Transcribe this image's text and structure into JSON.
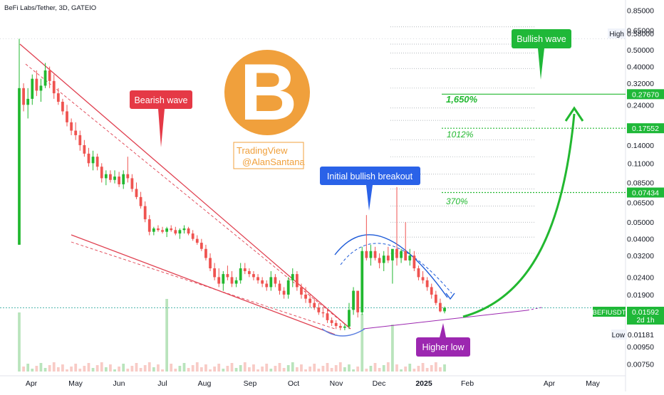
{
  "header": {
    "title": "BeFi Labs/Tether, 3D, GATEIO"
  },
  "watermark": {
    "line1": "TradingView",
    "line2": "@AlanSantana"
  },
  "logo": {
    "letter": "B",
    "color": "#F0A03C"
  },
  "annotations": {
    "bearish": "Bearish wave",
    "breakout": "Initial bullish breakout",
    "bullish": "Bullish wave",
    "higher_low": "Higher low",
    "pct_370": "370%",
    "pct_1012": "1012%",
    "pct_1650": "1,650%"
  },
  "price_axis": {
    "ticks": [
      "0.85000",
      "0.65000",
      "0.50000",
      "0.40000",
      "0.32000",
      "0.24000",
      "0.18000",
      "0.14000",
      "0.11000",
      "0.08500",
      "0.06500",
      "0.05000",
      "0.04000",
      "0.03200",
      "0.02400",
      "0.01900",
      "0.01450",
      "0.00950",
      "0.00750"
    ],
    "high_label": "High",
    "high_value": "0.58000",
    "low_label": "Low",
    "low_value": "0.01181",
    "current_symbol": "BEFIUSDT",
    "current_price": "0.01592",
    "countdown": "2d 1h",
    "target_1": "0.27670",
    "target_2": "0.17552",
    "target_3": "0.07434"
  },
  "time_axis": {
    "labels": [
      "Apr",
      "May",
      "Jun",
      "Jul",
      "Aug",
      "Sep",
      "Oct",
      "Nov",
      "Dec",
      "2025",
      "Feb",
      "Apr",
      "May"
    ]
  },
  "colors": {
    "up": "#26A69A",
    "down": "#EF5350",
    "green": "#22B830",
    "red": "#E04050",
    "blue": "#2962FF",
    "purple": "#9C27B0"
  },
  "chart_data": {
    "type": "candlestick",
    "title": "BeFi Labs/Tether, 3D, GATEIO",
    "scale": "log",
    "ylim": [
      0.0068,
      0.92
    ],
    "price_ticks": [
      0.85,
      0.65,
      0.5,
      0.4,
      0.32,
      0.24,
      0.18,
      0.14,
      0.11,
      0.085,
      0.065,
      0.05,
      0.04,
      0.032,
      0.024,
      0.019,
      0.0145,
      0.0095,
      0.0075
    ],
    "high": 0.58,
    "low": 0.01181,
    "last": 0.01592,
    "targets": [
      0.2767,
      0.17552,
      0.07434
    ],
    "candles": [
      [
        0.037,
        0.58,
        0.037,
        0.3
      ],
      [
        0.3,
        0.32,
        0.22,
        0.24
      ],
      [
        0.24,
        0.3,
        0.2,
        0.26
      ],
      [
        0.26,
        0.36,
        0.24,
        0.34
      ],
      [
        0.34,
        0.38,
        0.27,
        0.29
      ],
      [
        0.29,
        0.34,
        0.25,
        0.31
      ],
      [
        0.31,
        0.42,
        0.3,
        0.38
      ],
      [
        0.38,
        0.4,
        0.3,
        0.33
      ],
      [
        0.33,
        0.36,
        0.26,
        0.28
      ],
      [
        0.28,
        0.3,
        0.24,
        0.25
      ],
      [
        0.25,
        0.26,
        0.21,
        0.22
      ],
      [
        0.22,
        0.24,
        0.18,
        0.19
      ],
      [
        0.19,
        0.2,
        0.16,
        0.17
      ],
      [
        0.17,
        0.19,
        0.15,
        0.16
      ],
      [
        0.16,
        0.17,
        0.13,
        0.14
      ],
      [
        0.14,
        0.15,
        0.12,
        0.125
      ],
      [
        0.125,
        0.135,
        0.105,
        0.11
      ],
      [
        0.11,
        0.13,
        0.1,
        0.12
      ],
      [
        0.12,
        0.125,
        0.1,
        0.105
      ],
      [
        0.105,
        0.11,
        0.085,
        0.09
      ],
      [
        0.09,
        0.1,
        0.082,
        0.095
      ],
      [
        0.095,
        0.1,
        0.085,
        0.088
      ],
      [
        0.088,
        0.1,
        0.084,
        0.092
      ],
      [
        0.092,
        0.098,
        0.08,
        0.083
      ],
      [
        0.083,
        0.1,
        0.078,
        0.095
      ],
      [
        0.095,
        0.12,
        0.085,
        0.09
      ],
      [
        0.09,
        0.095,
        0.075,
        0.078
      ],
      [
        0.078,
        0.085,
        0.068,
        0.07
      ],
      [
        0.07,
        0.075,
        0.06,
        0.062
      ],
      [
        0.062,
        0.066,
        0.05,
        0.052
      ],
      [
        0.052,
        0.055,
        0.042,
        0.044
      ],
      [
        0.044,
        0.047,
        0.042,
        0.046
      ],
      [
        0.046,
        0.048,
        0.044,
        0.045
      ],
      [
        0.045,
        0.047,
        0.043,
        0.044
      ],
      [
        0.044,
        0.047,
        0.041,
        0.046
      ],
      [
        0.046,
        0.048,
        0.044,
        0.045
      ],
      [
        0.045,
        0.047,
        0.042,
        0.043
      ],
      [
        0.043,
        0.046,
        0.04,
        0.045
      ],
      [
        0.045,
        0.048,
        0.043,
        0.046
      ],
      [
        0.046,
        0.047,
        0.042,
        0.043
      ],
      [
        0.043,
        0.045,
        0.039,
        0.04
      ],
      [
        0.04,
        0.042,
        0.037,
        0.038
      ],
      [
        0.038,
        0.04,
        0.034,
        0.035
      ],
      [
        0.035,
        0.037,
        0.03,
        0.031
      ],
      [
        0.031,
        0.033,
        0.026,
        0.027
      ],
      [
        0.027,
        0.029,
        0.023,
        0.024
      ],
      [
        0.024,
        0.027,
        0.021,
        0.022
      ],
      [
        0.022,
        0.026,
        0.02,
        0.025
      ],
      [
        0.025,
        0.028,
        0.023,
        0.024
      ],
      [
        0.024,
        0.026,
        0.021,
        0.022
      ],
      [
        0.022,
        0.024,
        0.021,
        0.023
      ],
      [
        0.023,
        0.029,
        0.022,
        0.027
      ],
      [
        0.027,
        0.029,
        0.025,
        0.026
      ],
      [
        0.026,
        0.027,
        0.024,
        0.025
      ],
      [
        0.025,
        0.026,
        0.023,
        0.024
      ],
      [
        0.024,
        0.025,
        0.022,
        0.023
      ],
      [
        0.023,
        0.024,
        0.021,
        0.022
      ],
      [
        0.022,
        0.023,
        0.02,
        0.021
      ],
      [
        0.021,
        0.026,
        0.02,
        0.024
      ],
      [
        0.024,
        0.025,
        0.021,
        0.022
      ],
      [
        0.022,
        0.023,
        0.019,
        0.02
      ],
      [
        0.02,
        0.021,
        0.018,
        0.019
      ],
      [
        0.019,
        0.024,
        0.018,
        0.023
      ],
      [
        0.023,
        0.027,
        0.021,
        0.025
      ],
      [
        0.025,
        0.026,
        0.02,
        0.021
      ],
      [
        0.021,
        0.022,
        0.018,
        0.019
      ],
      [
        0.019,
        0.021,
        0.017,
        0.018
      ],
      [
        0.018,
        0.019,
        0.016,
        0.017
      ],
      [
        0.017,
        0.018,
        0.0155,
        0.016
      ],
      [
        0.016,
        0.017,
        0.0145,
        0.015
      ],
      [
        0.015,
        0.016,
        0.014,
        0.0148
      ],
      [
        0.0148,
        0.0155,
        0.013,
        0.0135
      ],
      [
        0.0135,
        0.014,
        0.0125,
        0.013
      ],
      [
        0.013,
        0.0135,
        0.012,
        0.0125
      ],
      [
        0.0125,
        0.013,
        0.0118,
        0.0122
      ],
      [
        0.0122,
        0.0128,
        0.0118,
        0.0124
      ],
      [
        0.0124,
        0.017,
        0.012,
        0.0155
      ],
      [
        0.0155,
        0.021,
        0.0145,
        0.02
      ],
      [
        0.02,
        0.02,
        0.014,
        0.015
      ],
      [
        0.015,
        0.036,
        0.0145,
        0.034
      ],
      [
        0.034,
        0.055,
        0.03,
        0.031
      ],
      [
        0.031,
        0.037,
        0.028,
        0.034
      ],
      [
        0.034,
        0.036,
        0.03,
        0.031
      ],
      [
        0.031,
        0.033,
        0.027,
        0.029
      ],
      [
        0.029,
        0.034,
        0.026,
        0.032
      ],
      [
        0.032,
        0.036,
        0.029,
        0.03
      ],
      [
        0.03,
        0.033,
        0.022,
        0.035
      ],
      [
        0.035,
        0.08,
        0.028,
        0.031
      ],
      [
        0.031,
        0.035,
        0.029,
        0.034
      ],
      [
        0.034,
        0.05,
        0.03,
        0.03
      ],
      [
        0.03,
        0.035,
        0.028,
        0.032
      ],
      [
        0.032,
        0.034,
        0.026,
        0.027
      ],
      [
        0.027,
        0.028,
        0.023,
        0.024
      ],
      [
        0.024,
        0.026,
        0.022,
        0.023
      ],
      [
        0.023,
        0.024,
        0.02,
        0.021
      ],
      [
        0.021,
        0.022,
        0.018,
        0.019
      ],
      [
        0.019,
        0.02,
        0.0165,
        0.017
      ],
      [
        0.017,
        0.018,
        0.015,
        0.0152
      ],
      [
        0.0152,
        0.0162,
        0.0148,
        0.01592
      ]
    ]
  }
}
